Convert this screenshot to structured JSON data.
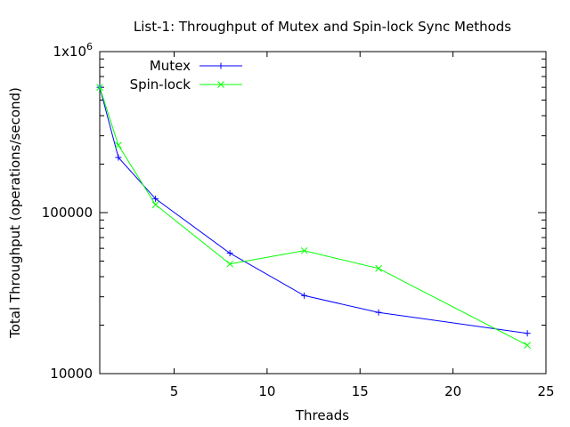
{
  "chart_data": {
    "type": "line",
    "title": "List-1: Throughput of Mutex and Spin-lock Sync Methods",
    "xlabel": "Threads",
    "ylabel": "Total Throughput (operations/second)",
    "xlim": [
      1,
      25
    ],
    "ylim": [
      10000,
      1000000
    ],
    "yscale": "log",
    "x_ticks": [
      5,
      10,
      15,
      20,
      25
    ],
    "x_tick_labels": [
      "5",
      "10",
      "15",
      "20",
      "25"
    ],
    "y_ticks": [
      10000,
      100000,
      1000000
    ],
    "y_tick_labels": [
      "10000",
      "100000",
      "1x10^6"
    ],
    "legend_position": "top-left",
    "grid": false,
    "series": [
      {
        "name": "Mutex",
        "color": "#0000ff",
        "marker": "plus",
        "x": [
          1,
          2,
          4,
          8,
          12,
          16,
          24
        ],
        "y": [
          600000,
          220000,
          122000,
          56000,
          30500,
          24000,
          17800
        ]
      },
      {
        "name": "Spin-lock",
        "color": "#00ff00",
        "marker": "cross",
        "x": [
          1,
          2,
          4,
          8,
          12,
          16,
          24
        ],
        "y": [
          600000,
          262000,
          112000,
          48000,
          58000,
          45000,
          15000
        ]
      }
    ]
  }
}
